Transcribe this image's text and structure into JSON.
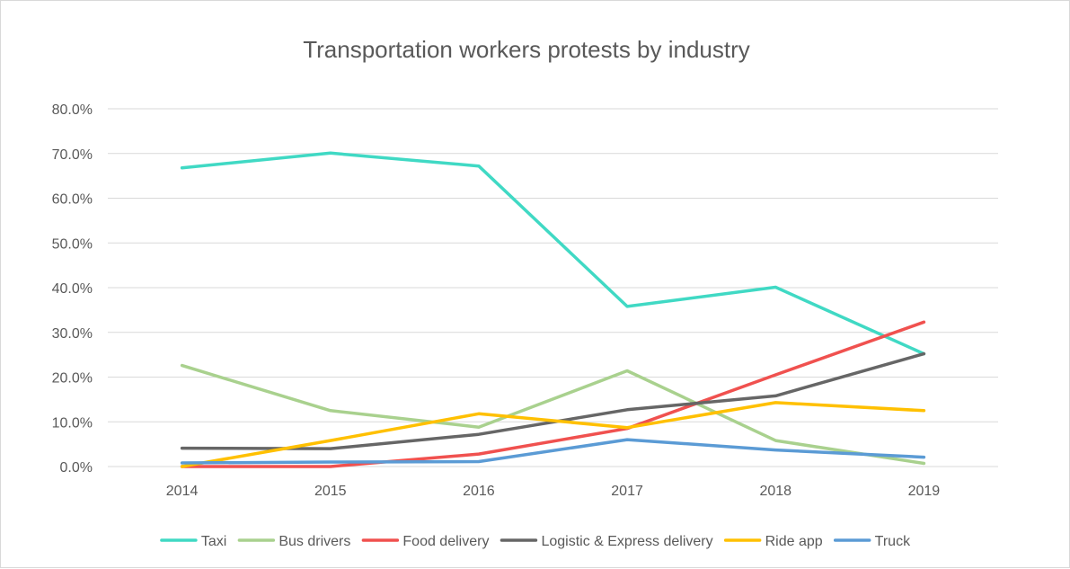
{
  "chart_data": {
    "type": "line",
    "title": "Transportation workers protests by industry",
    "xlabel": "",
    "ylabel": "",
    "categories": [
      "2014",
      "2015",
      "2016",
      "2017",
      "2018",
      "2019"
    ],
    "ylim": [
      0,
      0.8
    ],
    "yticks": [
      0,
      0.1,
      0.2,
      0.3,
      0.4,
      0.5,
      0.6,
      0.7,
      0.8
    ],
    "ytick_labels": [
      "0.0%",
      "10.0%",
      "20.0%",
      "30.0%",
      "40.0%",
      "50.0%",
      "60.0%",
      "70.0%",
      "80.0%"
    ],
    "grid": true,
    "legend_position": "bottom",
    "series": [
      {
        "name": "Taxi",
        "color": "#40D9C4",
        "values": [
          0.668,
          0.701,
          0.672,
          0.358,
          0.401,
          0.252
        ]
      },
      {
        "name": "Bus drivers",
        "color": "#A9D18E",
        "values": [
          0.226,
          0.125,
          0.088,
          0.214,
          0.058,
          0.007
        ]
      },
      {
        "name": "Food delivery",
        "color": "#F0514F",
        "values": [
          0.0,
          0.0,
          0.028,
          0.085,
          0.205,
          0.323
        ]
      },
      {
        "name": "Logistic & Express delivery",
        "color": "#666666",
        "values": [
          0.041,
          0.04,
          0.072,
          0.127,
          0.158,
          0.252
        ]
      },
      {
        "name": "Ride app",
        "color": "#FFC000",
        "values": [
          0.0,
          0.058,
          0.118,
          0.087,
          0.143,
          0.125
        ]
      },
      {
        "name": "Truck",
        "color": "#5B9BD5",
        "values": [
          0.008,
          0.01,
          0.011,
          0.06,
          0.037,
          0.021
        ]
      }
    ]
  }
}
